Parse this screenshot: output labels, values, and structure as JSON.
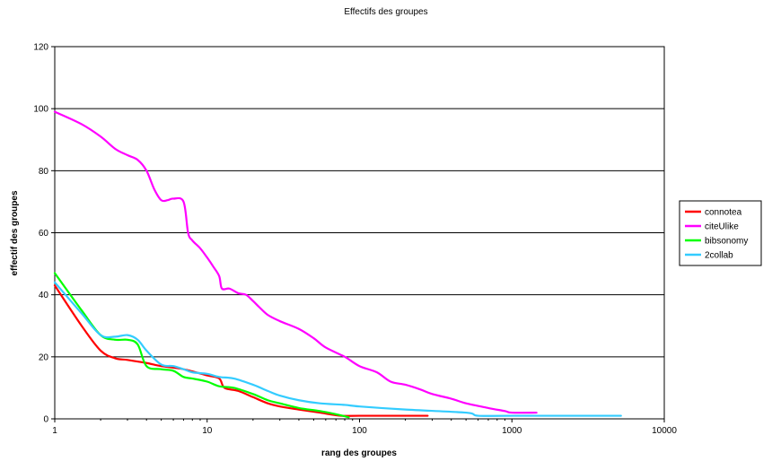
{
  "chart_data": {
    "type": "line",
    "title": "Effectifs des groupes",
    "xlabel": "rang des groupes",
    "ylabel": "effectif des groupes",
    "xscale": "log",
    "xlim": [
      1,
      10000
    ],
    "ylim": [
      0,
      120
    ],
    "x_ticks": [
      1,
      10,
      100,
      1000,
      10000
    ],
    "x_tick_labels": [
      "1",
      "10",
      "100",
      "1000",
      "10000"
    ],
    "y_ticks": [
      0,
      20,
      40,
      60,
      80,
      100,
      120
    ],
    "y_tick_labels": [
      "0",
      "20",
      "40",
      "60",
      "80",
      "100",
      "120"
    ],
    "grid": "horizontal",
    "legend_position": "right",
    "series": [
      {
        "name": "connotea",
        "color": "#ff0000",
        "points": [
          [
            1,
            43
          ],
          [
            1.5,
            30
          ],
          [
            2,
            22
          ],
          [
            2.5,
            19.5
          ],
          [
            3,
            19
          ],
          [
            4,
            18
          ],
          [
            5,
            17
          ],
          [
            7,
            16
          ],
          [
            10,
            14
          ],
          [
            12,
            13
          ],
          [
            13,
            10
          ],
          [
            16,
            9
          ],
          [
            20,
            7
          ],
          [
            25,
            5
          ],
          [
            30,
            4
          ],
          [
            40,
            3
          ],
          [
            55,
            2
          ],
          [
            75,
            1
          ],
          [
            100,
            1
          ],
          [
            280,
            1
          ]
        ]
      },
      {
        "name": "citeUlike",
        "color": "#ff00ff",
        "points": [
          [
            1,
            99
          ],
          [
            1.5,
            95
          ],
          [
            2,
            91
          ],
          [
            2.5,
            87
          ],
          [
            3,
            85
          ],
          [
            3.5,
            83.5
          ],
          [
            4,
            80
          ],
          [
            4.5,
            74
          ],
          [
            5,
            70.5
          ],
          [
            5.5,
            70.5
          ],
          [
            6,
            71
          ],
          [
            7,
            70
          ],
          [
            7.5,
            60
          ],
          [
            8,
            57.5
          ],
          [
            9,
            55
          ],
          [
            10,
            52
          ],
          [
            11,
            49
          ],
          [
            12,
            46
          ],
          [
            12.5,
            42
          ],
          [
            14,
            42
          ],
          [
            16,
            40.5
          ],
          [
            18,
            40
          ],
          [
            20,
            38
          ],
          [
            22,
            36
          ],
          [
            25,
            33.5
          ],
          [
            30,
            31.5
          ],
          [
            40,
            29
          ],
          [
            50,
            26
          ],
          [
            60,
            23
          ],
          [
            80,
            20
          ],
          [
            100,
            17
          ],
          [
            130,
            15
          ],
          [
            160,
            12
          ],
          [
            200,
            11
          ],
          [
            250,
            9.5
          ],
          [
            300,
            8
          ],
          [
            400,
            6.5
          ],
          [
            500,
            5
          ],
          [
            700,
            3.5
          ],
          [
            900,
            2.5
          ],
          [
            1000,
            2
          ],
          [
            1450,
            2
          ]
        ]
      },
      {
        "name": "bibsonomy",
        "color": "#00ff00",
        "points": [
          [
            1,
            47
          ],
          [
            1.5,
            35
          ],
          [
            2,
            27
          ],
          [
            2.5,
            25.5
          ],
          [
            3,
            25.5
          ],
          [
            3.5,
            24
          ],
          [
            4,
            17
          ],
          [
            5,
            16
          ],
          [
            6,
            15.5
          ],
          [
            7,
            13.5
          ],
          [
            8,
            13
          ],
          [
            10,
            12
          ],
          [
            12,
            10.5
          ],
          [
            15,
            10
          ],
          [
            20,
            8
          ],
          [
            25,
            6
          ],
          [
            30,
            5
          ],
          [
            40,
            3.5
          ],
          [
            55,
            2.5
          ],
          [
            70,
            1.5
          ],
          [
            85,
            0.5
          ]
        ]
      },
      {
        "name": "2collab",
        "color": "#33ccff",
        "points": [
          [
            1,
            44
          ],
          [
            1.5,
            34
          ],
          [
            2,
            27
          ],
          [
            2.5,
            26.5
          ],
          [
            3,
            27
          ],
          [
            3.5,
            25.5
          ],
          [
            4,
            22
          ],
          [
            5,
            17.5
          ],
          [
            6,
            17
          ],
          [
            7,
            16
          ],
          [
            8,
            15
          ],
          [
            10,
            14.5
          ],
          [
            12,
            13.5
          ],
          [
            15,
            13
          ],
          [
            20,
            11
          ],
          [
            25,
            9
          ],
          [
            30,
            7.5
          ],
          [
            40,
            6
          ],
          [
            55,
            5
          ],
          [
            80,
            4.5
          ],
          [
            100,
            4
          ],
          [
            200,
            3
          ],
          [
            500,
            2
          ],
          [
            600,
            1
          ],
          [
            1000,
            1
          ],
          [
            5200,
            1
          ]
        ]
      }
    ]
  }
}
